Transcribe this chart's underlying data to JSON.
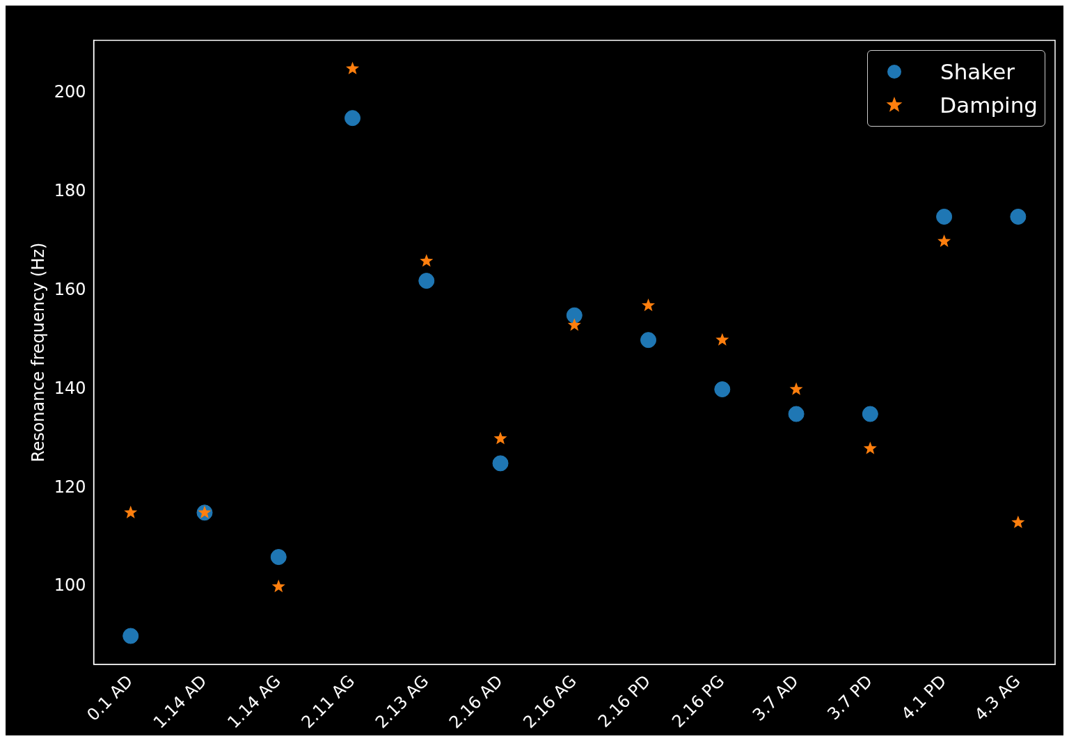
{
  "chart_data": {
    "type": "scatter",
    "ylabel": "Resonance frequency (Hz)",
    "categories": [
      "0.1 AD",
      "1.14 AD",
      "1.14 AG",
      "2.11 AG",
      "2.13 AG",
      "2.16 AD",
      "2.16 AG",
      "2.16 PD",
      "2.16 PG",
      "3.7 AD",
      "3.7 PD",
      "4.1 PD",
      "4.3 AG"
    ],
    "series": [
      {
        "name": "Shaker",
        "color": "#1f77b4",
        "marker": "circle",
        "values": [
          90,
          115,
          106,
          195,
          162,
          125,
          155,
          150,
          140,
          135,
          135,
          175,
          175
        ]
      },
      {
        "name": "Damping",
        "color": "#ff7f0e",
        "marker": "star",
        "values": [
          115,
          115,
          100,
          205,
          166,
          130,
          153,
          157,
          150,
          140,
          128,
          170,
          113
        ]
      }
    ],
    "ylim": [
      84.25,
      210.75
    ],
    "yticks": [
      100,
      120,
      140,
      160,
      180,
      200
    ],
    "grid": false,
    "legend": "top right"
  }
}
